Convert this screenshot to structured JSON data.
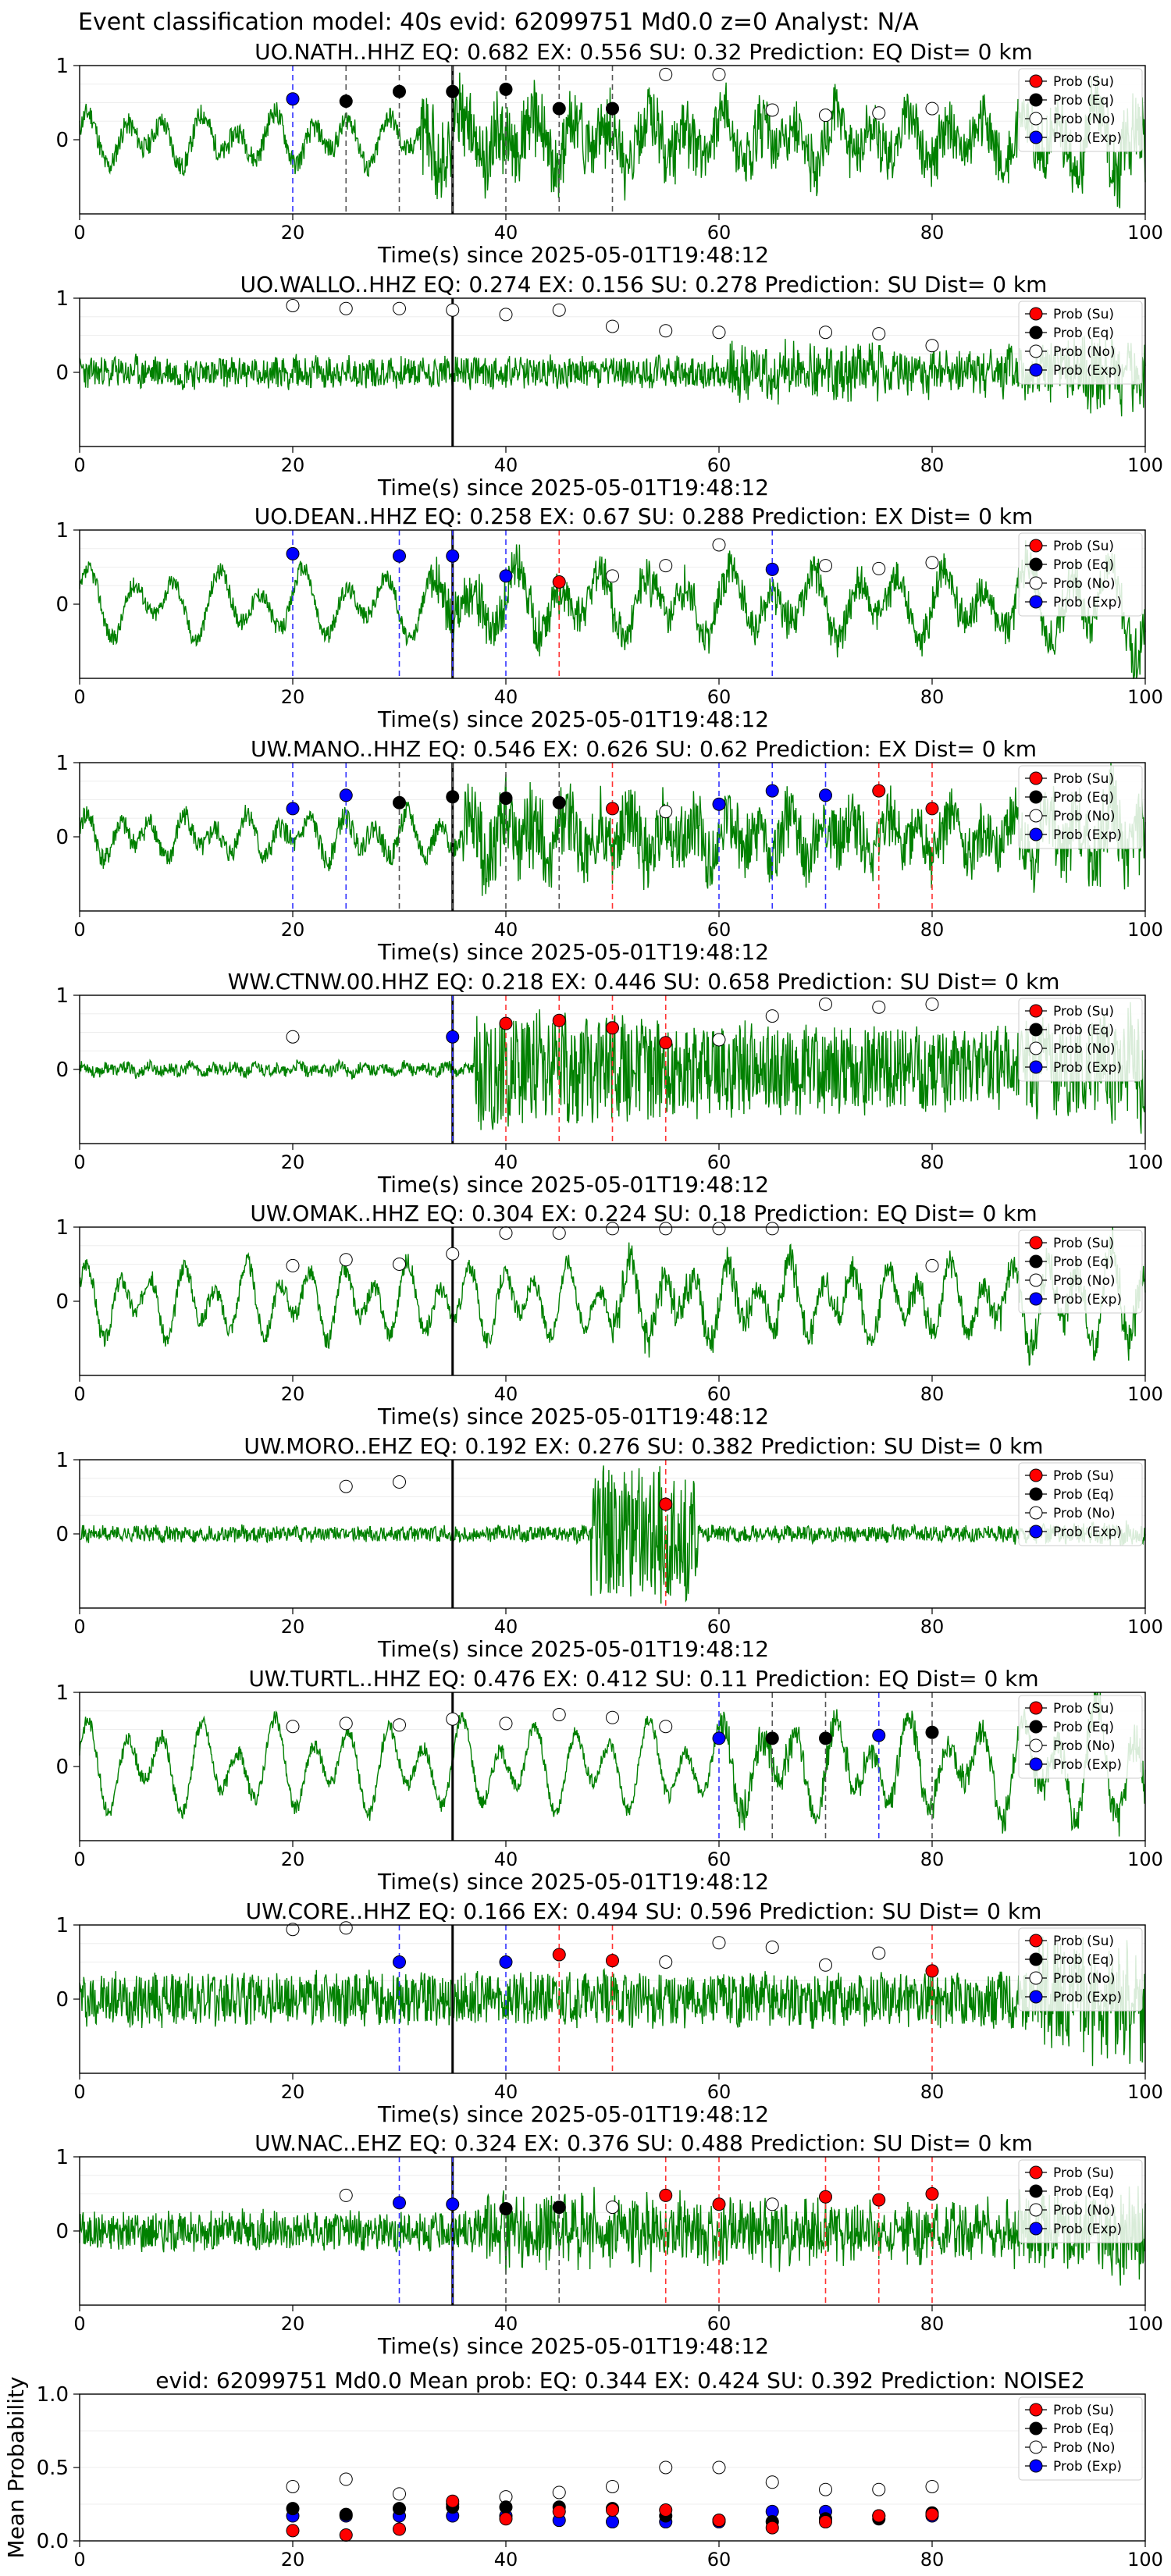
{
  "figure_title": "Event classification model: 40s evid: 62099751 Md0.0 z=0 Analyst: N/A",
  "legend": {
    "labels": [
      "Prob (Su)",
      "Prob (Eq)",
      "Prob (No)",
      "Prob (Exp)"
    ],
    "colors": [
      "#ff0000",
      "#000000",
      "#ffffff",
      "#0000ff"
    ]
  },
  "colors": {
    "waveform": "#008000",
    "su": "#ff0000",
    "eq": "#000000",
    "no": "#ffffff",
    "exp": "#0000ff",
    "pick": "#000000"
  },
  "chart_data": [
    {
      "type": "line",
      "title": "UO.NATH..HHZ    EQ: 0.682   EX: 0.556   SU: 0.32    Prediction: EQ    Dist= 0 km",
      "xlabel": "Time(s) since 2025-05-01T19:48:12",
      "xlim": [
        0,
        100
      ],
      "ylim": [
        -1,
        1
      ],
      "xticks": [
        "0",
        "20",
        "40",
        "60",
        "80",
        "100"
      ],
      "yticks": [
        "1",
        "0"
      ],
      "pick_time": 35,
      "waveform": {
        "amp": 0.35,
        "period": 3.5,
        "noise": 0.15,
        "burst_start": 32,
        "burst_amp": 0.5,
        "seed": 11
      },
      "points": [
        {
          "x": 20,
          "p": 0.55,
          "c": "exp"
        },
        {
          "x": 25,
          "p": 0.52,
          "c": "eq"
        },
        {
          "x": 30,
          "p": 0.65,
          "c": "eq"
        },
        {
          "x": 35,
          "p": 0.65,
          "c": "eq"
        },
        {
          "x": 40,
          "p": 0.68,
          "c": "eq"
        },
        {
          "x": 45,
          "p": 0.42,
          "c": "eq"
        },
        {
          "x": 50,
          "p": 0.42,
          "c": "eq"
        },
        {
          "x": 55,
          "p": 0.88,
          "c": "no"
        },
        {
          "x": 60,
          "p": 0.88,
          "c": "no"
        },
        {
          "x": 65,
          "p": 0.4,
          "c": "no"
        },
        {
          "x": 70,
          "p": 0.33,
          "c": "no"
        },
        {
          "x": 75,
          "p": 0.36,
          "c": "no"
        },
        {
          "x": 80,
          "p": 0.42,
          "c": "no"
        }
      ]
    },
    {
      "type": "line",
      "title": "UO.WALLO..HHZ    EQ: 0.274   EX: 0.156   SU: 0.278    Prediction: SU    Dist= 0 km",
      "xlabel": "Time(s) since 2025-05-01T19:48:12",
      "xlim": [
        0,
        100
      ],
      "ylim": [
        -1,
        1
      ],
      "xticks": [
        "0",
        "20",
        "40",
        "60",
        "80",
        "100"
      ],
      "yticks": [
        "1",
        "0"
      ],
      "pick_time": 35,
      "waveform": {
        "amp": 0.05,
        "period": 1,
        "noise": 0.2,
        "burst_start": 60,
        "burst_amp": 0.3,
        "seed": 23
      },
      "points": [
        {
          "x": 20,
          "p": 0.9,
          "c": "no"
        },
        {
          "x": 25,
          "p": 0.86,
          "c": "no"
        },
        {
          "x": 30,
          "p": 0.86,
          "c": "no"
        },
        {
          "x": 35,
          "p": 0.84,
          "c": "no"
        },
        {
          "x": 40,
          "p": 0.78,
          "c": "no"
        },
        {
          "x": 45,
          "p": 0.84,
          "c": "no"
        },
        {
          "x": 50,
          "p": 0.62,
          "c": "no"
        },
        {
          "x": 55,
          "p": 0.56,
          "c": "no"
        },
        {
          "x": 60,
          "p": 0.54,
          "c": "no"
        },
        {
          "x": 70,
          "p": 0.54,
          "c": "no"
        },
        {
          "x": 75,
          "p": 0.52,
          "c": "no"
        },
        {
          "x": 80,
          "p": 0.36,
          "c": "no"
        }
      ]
    },
    {
      "type": "line",
      "title": "UO.DEAN..HHZ    EQ: 0.258   EX: 0.67   SU: 0.288    Prediction: EX    Dist= 0 km",
      "xlabel": "Time(s) since 2025-05-01T19:48:12",
      "xlim": [
        0,
        100
      ],
      "ylim": [
        -1,
        1
      ],
      "xticks": [
        "0",
        "20",
        "40",
        "60",
        "80",
        "100"
      ],
      "yticks": [
        "1",
        "0"
      ],
      "pick_time": 35,
      "waveform": {
        "amp": 0.45,
        "period": 4,
        "noise": 0.12,
        "burst_start": 33,
        "burst_amp": 0.3,
        "seed": 37
      },
      "points": [
        {
          "x": 20,
          "p": 0.68,
          "c": "exp"
        },
        {
          "x": 30,
          "p": 0.65,
          "c": "exp"
        },
        {
          "x": 35,
          "p": 0.65,
          "c": "exp"
        },
        {
          "x": 40,
          "p": 0.38,
          "c": "exp"
        },
        {
          "x": 45,
          "p": 0.3,
          "c": "su"
        },
        {
          "x": 50,
          "p": 0.38,
          "c": "no"
        },
        {
          "x": 55,
          "p": 0.52,
          "c": "no"
        },
        {
          "x": 60,
          "p": 0.8,
          "c": "no"
        },
        {
          "x": 65,
          "p": 0.47,
          "c": "exp"
        },
        {
          "x": 70,
          "p": 0.52,
          "c": "no"
        },
        {
          "x": 75,
          "p": 0.48,
          "c": "no"
        },
        {
          "x": 80,
          "p": 0.56,
          "c": "no"
        }
      ]
    },
    {
      "type": "line",
      "title": "UW.MANO..HHZ    EQ: 0.546   EX: 0.626   SU: 0.62    Prediction: EX    Dist= 0 km",
      "xlabel": "Time(s) since 2025-05-01T19:48:12",
      "xlim": [
        0,
        100
      ],
      "ylim": [
        -1,
        1
      ],
      "xticks": [
        "0",
        "20",
        "40",
        "60",
        "80",
        "100"
      ],
      "yticks": [
        "1",
        "0"
      ],
      "pick_time": 35,
      "waveform": {
        "amp": 0.3,
        "period": 3,
        "noise": 0.15,
        "burst_start": 36,
        "burst_amp": 0.55,
        "seed": 41
      },
      "points": [
        {
          "x": 20,
          "p": 0.38,
          "c": "exp"
        },
        {
          "x": 25,
          "p": 0.56,
          "c": "exp"
        },
        {
          "x": 30,
          "p": 0.46,
          "c": "eq"
        },
        {
          "x": 35,
          "p": 0.54,
          "c": "eq"
        },
        {
          "x": 40,
          "p": 0.52,
          "c": "eq"
        },
        {
          "x": 45,
          "p": 0.46,
          "c": "eq"
        },
        {
          "x": 50,
          "p": 0.38,
          "c": "su"
        },
        {
          "x": 55,
          "p": 0.34,
          "c": "no"
        },
        {
          "x": 60,
          "p": 0.44,
          "c": "exp"
        },
        {
          "x": 65,
          "p": 0.62,
          "c": "exp"
        },
        {
          "x": 70,
          "p": 0.56,
          "c": "exp"
        },
        {
          "x": 75,
          "p": 0.62,
          "c": "su"
        },
        {
          "x": 80,
          "p": 0.38,
          "c": "su"
        }
      ]
    },
    {
      "type": "line",
      "title": "WW.CTNW.00.HHZ    EQ: 0.218   EX: 0.446   SU: 0.658    Prediction: SU    Dist= 0 km",
      "xlabel": "Time(s) since 2025-05-01T19:48:12",
      "xlim": [
        0,
        100
      ],
      "ylim": [
        -1,
        1
      ],
      "xticks": [
        "0",
        "20",
        "40",
        "60",
        "80",
        "100"
      ],
      "yticks": [
        "1",
        "0"
      ],
      "pick_time": 35,
      "waveform": {
        "amp": 0.05,
        "period": 2,
        "noise": 0.08,
        "burst_start": 37,
        "burst_amp": 0.85,
        "seed": 53
      },
      "points": [
        {
          "x": 20,
          "p": 0.44,
          "c": "no"
        },
        {
          "x": 35,
          "p": 0.44,
          "c": "exp"
        },
        {
          "x": 40,
          "p": 0.62,
          "c": "su"
        },
        {
          "x": 45,
          "p": 0.66,
          "c": "su"
        },
        {
          "x": 50,
          "p": 0.56,
          "c": "su"
        },
        {
          "x": 55,
          "p": 0.36,
          "c": "su"
        },
        {
          "x": 60,
          "p": 0.4,
          "c": "no"
        },
        {
          "x": 65,
          "p": 0.72,
          "c": "no"
        },
        {
          "x": 70,
          "p": 0.88,
          "c": "no"
        },
        {
          "x": 75,
          "p": 0.84,
          "c": "no"
        },
        {
          "x": 80,
          "p": 0.88,
          "c": "no"
        }
      ]
    },
    {
      "type": "line",
      "title": "UW.OMAK..HHZ    EQ: 0.304   EX: 0.224   SU: 0.18    Prediction: EQ    Dist= 0 km",
      "xlabel": "Time(s) since 2025-05-01T19:48:12",
      "xlim": [
        0,
        100
      ],
      "ylim": [
        -1,
        1
      ],
      "xticks": [
        "0",
        "20",
        "40",
        "60",
        "80",
        "100"
      ],
      "yticks": [
        "1",
        "0"
      ],
      "pick_time": 35,
      "waveform": {
        "amp": 0.5,
        "period": 3,
        "noise": 0.12,
        "burst_start": 50,
        "burst_amp": 0.2,
        "seed": 67
      },
      "points": [
        {
          "x": 20,
          "p": 0.48,
          "c": "no"
        },
        {
          "x": 25,
          "p": 0.56,
          "c": "no"
        },
        {
          "x": 30,
          "p": 0.5,
          "c": "no"
        },
        {
          "x": 35,
          "p": 0.64,
          "c": "no"
        },
        {
          "x": 40,
          "p": 0.92,
          "c": "no"
        },
        {
          "x": 45,
          "p": 0.92,
          "c": "no"
        },
        {
          "x": 50,
          "p": 0.98,
          "c": "no"
        },
        {
          "x": 55,
          "p": 0.98,
          "c": "no"
        },
        {
          "x": 60,
          "p": 0.98,
          "c": "no"
        },
        {
          "x": 65,
          "p": 0.98,
          "c": "no"
        },
        {
          "x": 80,
          "p": 0.48,
          "c": "no"
        }
      ]
    },
    {
      "type": "line",
      "title": "UW.MORO..EHZ    EQ: 0.192   EX: 0.276   SU: 0.382    Prediction: SU    Dist= 0 km",
      "xlabel": "Time(s) since 2025-05-01T19:48:12",
      "xlim": [
        0,
        100
      ],
      "ylim": [
        -1,
        1
      ],
      "xticks": [
        "0",
        "20",
        "40",
        "60",
        "80",
        "100"
      ],
      "yticks": [
        "1",
        "0"
      ],
      "pick_time": 35,
      "waveform": {
        "amp": 0.03,
        "period": 1,
        "noise": 0.1,
        "burst_start": 48,
        "burst_amp": 0.9,
        "burst_end": 58,
        "seed": 71
      },
      "points": [
        {
          "x": 25,
          "p": 0.64,
          "c": "no"
        },
        {
          "x": 30,
          "p": 0.7,
          "c": "no"
        },
        {
          "x": 55,
          "p": 0.4,
          "c": "su"
        }
      ]
    },
    {
      "type": "line",
      "title": "UW.TURTL..HHZ    EQ: 0.476   EX: 0.412   SU: 0.11    Prediction: EQ    Dist= 0 km",
      "xlabel": "Time(s) since 2025-05-01T19:48:12",
      "xlim": [
        0,
        100
      ],
      "ylim": [
        -1,
        1
      ],
      "xticks": [
        "0",
        "20",
        "40",
        "60",
        "80",
        "100"
      ],
      "yticks": [
        "1",
        "0"
      ],
      "pick_time": 35,
      "waveform": {
        "amp": 0.6,
        "period": 3.5,
        "noise": 0.1,
        "burst_start": 60,
        "burst_amp": 0.2,
        "seed": 83
      },
      "points": [
        {
          "x": 20,
          "p": 0.54,
          "c": "no"
        },
        {
          "x": 25,
          "p": 0.58,
          "c": "no"
        },
        {
          "x": 30,
          "p": 0.56,
          "c": "no"
        },
        {
          "x": 35,
          "p": 0.64,
          "c": "no"
        },
        {
          "x": 40,
          "p": 0.58,
          "c": "no"
        },
        {
          "x": 45,
          "p": 0.7,
          "c": "no"
        },
        {
          "x": 50,
          "p": 0.66,
          "c": "no"
        },
        {
          "x": 55,
          "p": 0.54,
          "c": "no"
        },
        {
          "x": 60,
          "p": 0.38,
          "c": "exp"
        },
        {
          "x": 65,
          "p": 0.38,
          "c": "eq"
        },
        {
          "x": 70,
          "p": 0.38,
          "c": "eq"
        },
        {
          "x": 75,
          "p": 0.42,
          "c": "exp"
        },
        {
          "x": 80,
          "p": 0.46,
          "c": "eq"
        }
      ]
    },
    {
      "type": "line",
      "title": "UW.CORE..HHZ    EQ: 0.166   EX: 0.494   SU: 0.596    Prediction: SU    Dist= 0 km",
      "xlabel": "Time(s) since 2025-05-01T19:48:12",
      "xlim": [
        0,
        100
      ],
      "ylim": [
        -1,
        1
      ],
      "xticks": [
        "0",
        "20",
        "40",
        "60",
        "80",
        "100"
      ],
      "yticks": [
        "1",
        "0"
      ],
      "pick_time": 35,
      "waveform": {
        "amp": 0.05,
        "period": 1,
        "noise": 0.35,
        "burst_start": 90,
        "burst_amp": 0.4,
        "seed": 97
      },
      "points": [
        {
          "x": 20,
          "p": 0.94,
          "c": "no"
        },
        {
          "x": 25,
          "p": 0.96,
          "c": "no"
        },
        {
          "x": 30,
          "p": 0.5,
          "c": "exp"
        },
        {
          "x": 40,
          "p": 0.5,
          "c": "exp"
        },
        {
          "x": 45,
          "p": 0.6,
          "c": "su"
        },
        {
          "x": 50,
          "p": 0.52,
          "c": "su"
        },
        {
          "x": 55,
          "p": 0.5,
          "c": "no"
        },
        {
          "x": 60,
          "p": 0.76,
          "c": "no"
        },
        {
          "x": 65,
          "p": 0.7,
          "c": "no"
        },
        {
          "x": 70,
          "p": 0.46,
          "c": "no"
        },
        {
          "x": 75,
          "p": 0.62,
          "c": "no"
        },
        {
          "x": 80,
          "p": 0.38,
          "c": "su"
        }
      ]
    },
    {
      "type": "line",
      "title": "UW.NAC..EHZ    EQ: 0.324   EX: 0.376   SU: 0.488    Prediction: SU    Dist= 0 km",
      "xlabel": "Time(s) since 2025-05-01T19:48:12",
      "xlim": [
        0,
        100
      ],
      "ylim": [
        -1,
        1
      ],
      "xticks": [
        "0",
        "20",
        "40",
        "60",
        "80",
        "100"
      ],
      "yticks": [
        "1",
        "0"
      ],
      "pick_time": 35,
      "waveform": {
        "amp": 0.05,
        "period": 1,
        "noise": 0.25,
        "burst_start": 38,
        "burst_amp": 0.4,
        "seed": 101
      },
      "points": [
        {
          "x": 25,
          "p": 0.48,
          "c": "no"
        },
        {
          "x": 30,
          "p": 0.38,
          "c": "exp"
        },
        {
          "x": 35,
          "p": 0.36,
          "c": "exp"
        },
        {
          "x": 40,
          "p": 0.3,
          "c": "eq"
        },
        {
          "x": 45,
          "p": 0.32,
          "c": "eq"
        },
        {
          "x": 50,
          "p": 0.32,
          "c": "no"
        },
        {
          "x": 55,
          "p": 0.48,
          "c": "su"
        },
        {
          "x": 60,
          "p": 0.36,
          "c": "su"
        },
        {
          "x": 65,
          "p": 0.36,
          "c": "no"
        },
        {
          "x": 70,
          "p": 0.46,
          "c": "su"
        },
        {
          "x": 75,
          "p": 0.42,
          "c": "su"
        },
        {
          "x": 80,
          "p": 0.5,
          "c": "su"
        }
      ]
    },
    {
      "type": "scatter",
      "title": "evid: 62099751   Md0.0    Mean prob:    EQ: 0.344   EX: 0.424   SU: 0.392    Prediction: NOISE2",
      "ylabel": "Mean Probability",
      "xlim": [
        0,
        100
      ],
      "ylim": [
        0,
        1
      ],
      "xticks": [
        "0",
        "20",
        "40",
        "60",
        "80",
        "100"
      ],
      "yticks": [
        "0.0",
        "0.5",
        "1.0"
      ],
      "series": [
        {
          "name": "Prob (No)",
          "c": "no",
          "x": [
            20,
            25,
            30,
            35,
            40,
            45,
            50,
            55,
            60,
            65,
            70,
            75,
            80
          ],
          "y": [
            0.37,
            0.42,
            0.32,
            0.25,
            0.3,
            0.33,
            0.37,
            0.5,
            0.5,
            0.4,
            0.35,
            0.35,
            0.37
          ]
        },
        {
          "name": "Prob (Exp)",
          "c": "exp",
          "x": [
            20,
            25,
            30,
            35,
            40,
            45,
            50,
            55,
            60,
            65,
            70,
            75,
            80
          ],
          "y": [
            0.17,
            0.17,
            0.17,
            0.17,
            0.17,
            0.14,
            0.13,
            0.13,
            0.13,
            0.2,
            0.2,
            0.17,
            0.17
          ]
        },
        {
          "name": "Prob (Eq)",
          "c": "eq",
          "x": [
            20,
            25,
            30,
            35,
            40,
            45,
            50,
            55,
            60,
            65,
            70,
            75,
            80
          ],
          "y": [
            0.22,
            0.18,
            0.22,
            0.23,
            0.23,
            0.23,
            0.22,
            0.17,
            0.14,
            0.13,
            0.15,
            0.15,
            0.19
          ]
        },
        {
          "name": "Prob (Su)",
          "c": "su",
          "x": [
            20,
            25,
            30,
            35,
            40,
            45,
            50,
            55,
            60,
            65,
            70,
            75,
            80
          ],
          "y": [
            0.07,
            0.04,
            0.08,
            0.27,
            0.15,
            0.2,
            0.21,
            0.21,
            0.14,
            0.09,
            0.13,
            0.17,
            0.18
          ]
        }
      ]
    }
  ]
}
